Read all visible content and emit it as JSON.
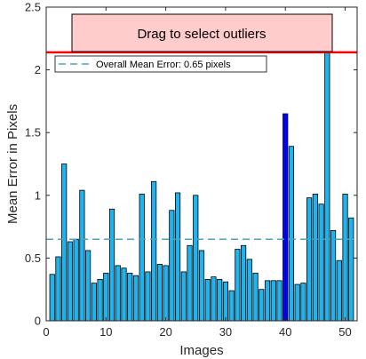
{
  "chart_data": {
    "type": "bar",
    "xlabel": "Images",
    "ylabel": "Mean Error in Pixels",
    "xlim": [
      0,
      52
    ],
    "ylim": [
      0,
      2.5
    ],
    "xticks": [
      0,
      10,
      20,
      30,
      40,
      50
    ],
    "yticks": [
      0,
      0.5,
      1,
      1.5,
      2,
      2.5
    ],
    "xtick_labels": [
      "0",
      "10",
      "20",
      "30",
      "40",
      "50"
    ],
    "ytick_labels": [
      "0",
      "0.5",
      "1",
      "1.5",
      "2",
      "2.5"
    ],
    "grid": false,
    "x": [
      1,
      2,
      3,
      4,
      5,
      6,
      7,
      8,
      9,
      10,
      11,
      12,
      13,
      14,
      15,
      16,
      17,
      18,
      19,
      20,
      21,
      22,
      23,
      24,
      25,
      26,
      27,
      28,
      29,
      30,
      31,
      32,
      33,
      34,
      35,
      36,
      37,
      38,
      39,
      40,
      41,
      42,
      43,
      44,
      45,
      46,
      47,
      48,
      49,
      50,
      51
    ],
    "values": [
      0.37,
      0.51,
      1.25,
      0.63,
      0.65,
      1.04,
      0.56,
      0.3,
      0.33,
      0.38,
      0.89,
      0.44,
      0.42,
      0.38,
      0.36,
      1.01,
      0.39,
      1.11,
      0.45,
      0.44,
      0.88,
      1.02,
      0.39,
      0.6,
      1.0,
      0.56,
      0.33,
      0.35,
      0.33,
      0.31,
      0.24,
      0.57,
      0.6,
      0.49,
      0.38,
      0.25,
      0.32,
      0.32,
      0.32,
      1.65,
      1.39,
      0.29,
      0.3,
      0.98,
      1.01,
      0.93,
      2.14,
      0.72,
      0.48,
      1.01,
      0.82
    ],
    "highlight_index": 39,
    "bar_color": "#1eb4f0",
    "highlight_color": "#0000ff",
    "bar_edge_color": "#000000",
    "mean_line": {
      "value": 0.65,
      "color": "#4aa5b8",
      "style": "dashed"
    },
    "threshold_line": {
      "value": 2.14,
      "color": "#ff0000"
    },
    "legend": {
      "label": "Overall Mean Error: 0.65 pixels",
      "placement": "top-left"
    },
    "banner": {
      "text": "Drag to select outliers",
      "fill": "#ffcccc"
    }
  }
}
